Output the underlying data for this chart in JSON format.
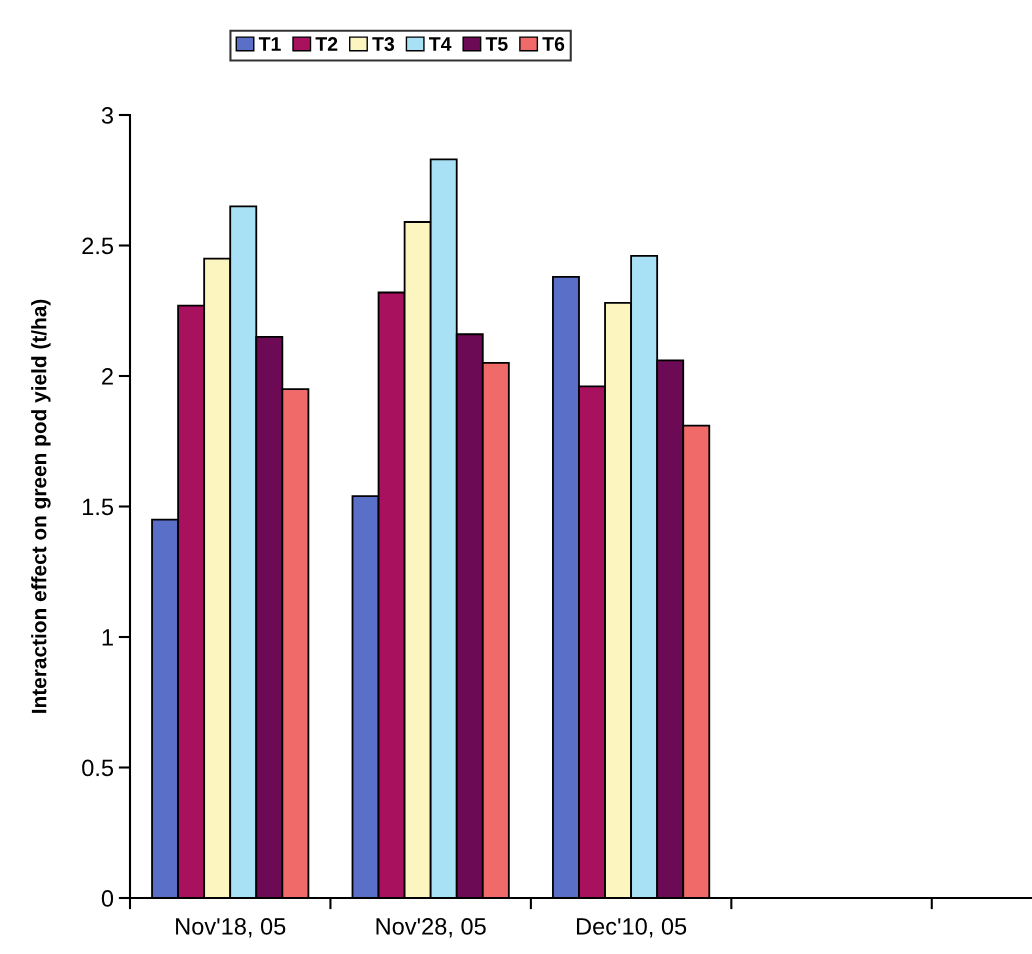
{
  "chart_data": {
    "type": "bar",
    "ylabel": "Interaction effect on green pod yield (t/ha)",
    "categories": [
      "Nov'18, 05",
      "Nov'28, 05",
      "Dec'10, 05",
      null
    ],
    "series": [
      {
        "name": "T1",
        "color": "#5a6fc8",
        "values": [
          1.45,
          1.54,
          2.38,
          null
        ]
      },
      {
        "name": "T2",
        "color": "#a8115e",
        "values": [
          2.27,
          2.32,
          1.96,
          null
        ]
      },
      {
        "name": "T3",
        "color": "#fdf5c0",
        "values": [
          2.45,
          2.59,
          2.28,
          null
        ]
      },
      {
        "name": "T4",
        "color": "#a8e0f5",
        "values": [
          2.65,
          2.83,
          2.46,
          null
        ]
      },
      {
        "name": "T5",
        "color": "#6c0a55",
        "values": [
          2.15,
          2.16,
          2.06,
          null
        ]
      },
      {
        "name": "T6",
        "color": "#f06a6a",
        "values": [
          1.95,
          2.05,
          1.81,
          null
        ]
      }
    ],
    "ylim": [
      0,
      3
    ],
    "yticks": [
      0,
      0.5,
      1,
      1.5,
      2,
      2.5,
      3
    ],
    "grid": false,
    "legend": "top"
  }
}
